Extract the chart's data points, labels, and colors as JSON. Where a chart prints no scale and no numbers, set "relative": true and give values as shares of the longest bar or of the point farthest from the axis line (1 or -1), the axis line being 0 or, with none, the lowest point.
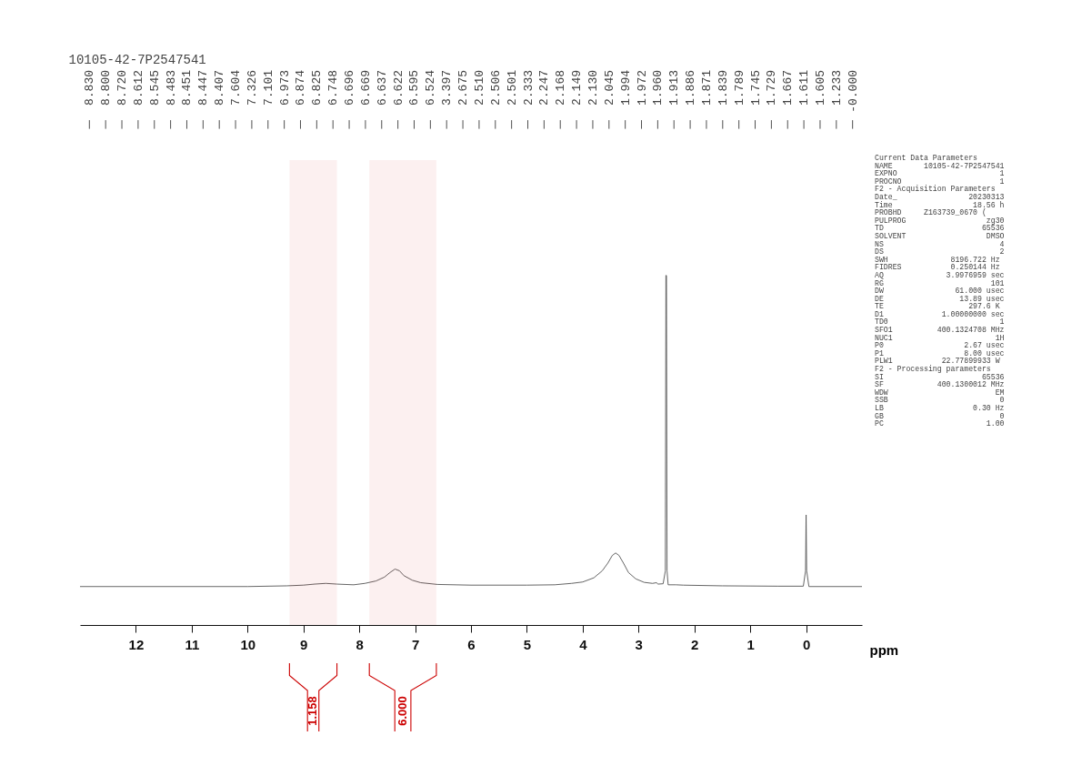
{
  "chart_data": {
    "type": "line",
    "title": "10105-42-7P2547541",
    "xlabel": "ppm",
    "relative": true,
    "grid": false,
    "marker": "none",
    "line_style": "solid",
    "xlim": [
      13,
      -1
    ],
    "xticks": [
      12,
      11,
      10,
      9,
      8,
      7,
      6,
      5,
      4,
      3,
      2,
      1,
      0
    ],
    "series": [
      {
        "color": "#555555",
        "x": [
          13,
          10,
          9.3,
          9.0,
          8.8,
          8.6,
          8.4,
          8.1,
          7.9,
          7.7,
          7.55,
          7.45,
          7.36,
          7.28,
          7.2,
          7.05,
          6.9,
          6.6,
          6.0,
          5.0,
          4.5,
          4.2,
          4.0,
          3.8,
          3.65,
          3.55,
          3.47,
          3.41,
          3.35,
          3.27,
          3.18,
          3.05,
          2.9,
          2.75,
          2.68,
          2.65,
          2.56,
          2.52,
          2.51,
          2.5,
          2.49,
          2.47,
          2.33,
          2.2,
          1.5,
          0.5,
          0.05,
          0.01,
          0,
          -0.01,
          -0.05,
          -1
        ],
        "values": [
          0.11,
          0.11,
          0.112,
          0.114,
          0.117,
          0.119,
          0.117,
          0.115,
          0.119,
          0.126,
          0.137,
          0.15,
          0.16,
          0.155,
          0.141,
          0.128,
          0.121,
          0.116,
          0.114,
          0.114,
          0.115,
          0.119,
          0.123,
          0.135,
          0.155,
          0.177,
          0.199,
          0.206,
          0.199,
          0.177,
          0.15,
          0.132,
          0.122,
          0.119,
          0.121,
          0.117,
          0.118,
          0.155,
          1,
          1,
          0.155,
          0.115,
          0.115,
          0.114,
          0.112,
          0.111,
          0.111,
          0.155,
          0.315,
          0.155,
          0.11,
          0.11
        ]
      }
    ],
    "bands": [
      {
        "axis": "x",
        "from": 9.25,
        "to": 8.4,
        "label": "1.158",
        "color": "#cc0000"
      },
      {
        "axis": "x",
        "from": 7.82,
        "to": 6.62,
        "label": "6.000",
        "color": "#cc0000"
      }
    ],
    "annotations": [
      "8.830",
      "8.800",
      "8.720",
      "8.612",
      "8.545",
      "8.483",
      "8.451",
      "8.447",
      "8.407",
      "7.604",
      "7.326",
      "7.101",
      "6.973",
      "6.874",
      "6.825",
      "6.748",
      "6.696",
      "6.669",
      "6.637",
      "6.622",
      "6.595",
      "6.524",
      "3.397",
      "2.675",
      "2.510",
      "2.506",
      "2.501",
      "2.333",
      "2.247",
      "2.168",
      "2.149",
      "2.130",
      "2.045",
      "1.994",
      "1.972",
      "1.960",
      "1.913",
      "1.886",
      "1.871",
      "1.839",
      "1.789",
      "1.745",
      "1.729",
      "1.667",
      "1.611",
      "1.605",
      "1.233",
      "-0.000",
      "Current Data Parameters",
      "NAME       10105-42-7P2547541",
      "EXPNO                       1",
      "PROCNO                      1",
      "F2 - Acquisition Parameters",
      "Date_                20230313",
      "Time                  18.56 h",
      "PROBHD     Z163739_0670 (",
      "PULPROG                  zg30",
      "TD                      65536",
      "SOLVENT                  DMSO",
      "NS                          4",
      "DS                          2",
      "SWH              8196.722 Hz",
      "FIDRES           0.250144 Hz",
      "AQ              3.9976959 sec",
      "RG                        101",
      "DW                61.000 usec",
      "DE                 13.89 usec",
      "TE                   297.6 K",
      "D1             1.00000000 sec",
      "TD0                         1",
      "SFO1          400.1324708 MHz",
      "NUC1                       1H",
      "P0                  2.67 usec",
      "P1                  8.00 usec",
      "PLW1           22.77899933 W",
      "F2 - Processing parameters",
      "SI                      65536",
      "SF            400.1300012 MHz",
      "WDW                        EM",
      "SSB                         0",
      "LB                    0.30 Hz",
      "GB                          0",
      "PC                       1.00"
    ]
  }
}
